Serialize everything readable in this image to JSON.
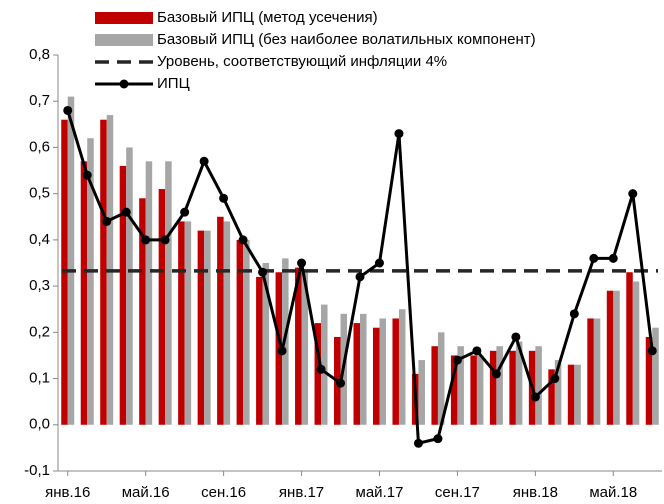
{
  "chart_data": {
    "type": "bar_line",
    "categories": [
      "янв.16",
      null,
      null,
      null,
      "май.16",
      null,
      null,
      null,
      "сен.16",
      null,
      null,
      null,
      "янв.17",
      null,
      null,
      null,
      "май.17",
      null,
      null,
      null,
      "сен.17",
      null,
      null,
      null,
      "янв.18",
      null,
      null,
      null,
      "май.18",
      null,
      null
    ],
    "series": [
      {
        "name": "Базовый ИПЦ (метод усечения)",
        "kind": "bar",
        "color": "#c00000",
        "values": [
          0.66,
          0.57,
          0.66,
          0.56,
          0.49,
          0.51,
          0.44,
          0.42,
          0.45,
          0.4,
          0.32,
          0.33,
          0.34,
          0.22,
          0.19,
          0.22,
          0.21,
          0.23,
          0.11,
          0.17,
          0.15,
          0.15,
          0.16,
          0.16,
          0.16,
          0.12,
          0.13,
          0.23,
          0.29,
          0.33,
          0.19
        ]
      },
      {
        "name": "Базовый ИПЦ (без наиболее волатильных компонент)",
        "kind": "bar",
        "color": "#a6a6a6",
        "values": [
          0.71,
          0.62,
          0.67,
          0.6,
          0.57,
          0.57,
          0.44,
          0.42,
          0.44,
          0.4,
          0.35,
          0.36,
          0.33,
          0.26,
          0.24,
          0.24,
          0.23,
          0.25,
          0.14,
          0.2,
          0.17,
          0.15,
          0.17,
          0.18,
          0.17,
          0.14,
          0.13,
          0.23,
          0.29,
          0.31,
          0.21
        ]
      },
      {
        "name": "Уровень, соответствующий инфляции 4%",
        "kind": "level",
        "color": "#262626",
        "value": 0.333
      },
      {
        "name": "ИПЦ",
        "kind": "line",
        "color": "#000000",
        "values": [
          0.68,
          0.54,
          0.44,
          0.46,
          0.4,
          0.4,
          0.46,
          0.57,
          0.49,
          0.4,
          0.33,
          0.16,
          0.35,
          0.12,
          0.09,
          0.32,
          0.35,
          0.63,
          -0.04,
          -0.03,
          0.14,
          0.16,
          0.11,
          0.19,
          0.06,
          0.1,
          0.24,
          0.36,
          0.36,
          0.5,
          0.16
        ]
      }
    ],
    "ylim": [
      -0.1,
      0.8
    ],
    "yticks": [
      {
        "value": -0.1,
        "label": "-0,1"
      },
      {
        "value": 0,
        "label": "0,0"
      },
      {
        "value": 0.1,
        "label": "0,1"
      },
      {
        "value": 0.2,
        "label": "0,2"
      },
      {
        "value": 0.3,
        "label": "0,3"
      },
      {
        "value": 0.4,
        "label": "0,4"
      },
      {
        "value": 0.5,
        "label": "0,5"
      },
      {
        "value": 0.6,
        "label": "0,6"
      },
      {
        "value": 0.7,
        "label": "0,7"
      },
      {
        "value": 0.8,
        "label": "0,8"
      }
    ]
  }
}
